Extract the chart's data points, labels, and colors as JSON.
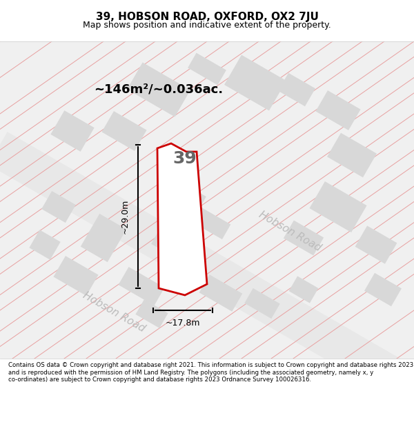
{
  "title_line1": "39, HOBSON ROAD, OXFORD, OX2 7JU",
  "title_line2": "Map shows position and indicative extent of the property.",
  "area_text": "~146m²/~0.036ac.",
  "dim_width": "~17.8m",
  "dim_height": "~29.0m",
  "number_label": "39",
  "road_label1": "Hobson Road",
  "road_label2": "Hobson Road",
  "footer_text": "Contains OS data © Crown copyright and database right 2021. This information is subject to Crown copyright and database rights 2023 and is reproduced with the permission of HM Land Registry. The polygons (including the associated geometry, namely x, y co-ordinates) are subject to Crown copyright and database rights 2023 Ordnance Survey 100026316.",
  "bg_color": "#f5f5f5",
  "map_bg": "#f0f0f0",
  "road_fill": "#e8e8e8",
  "building_fill": "#d8d8d8",
  "highlight_fill": "#ffffff",
  "highlight_stroke": "#cc0000",
  "road_line_color": "#e8a0a0",
  "dim_line_color": "#000000",
  "text_color": "#000000",
  "road_text_color": "#aaaaaa"
}
